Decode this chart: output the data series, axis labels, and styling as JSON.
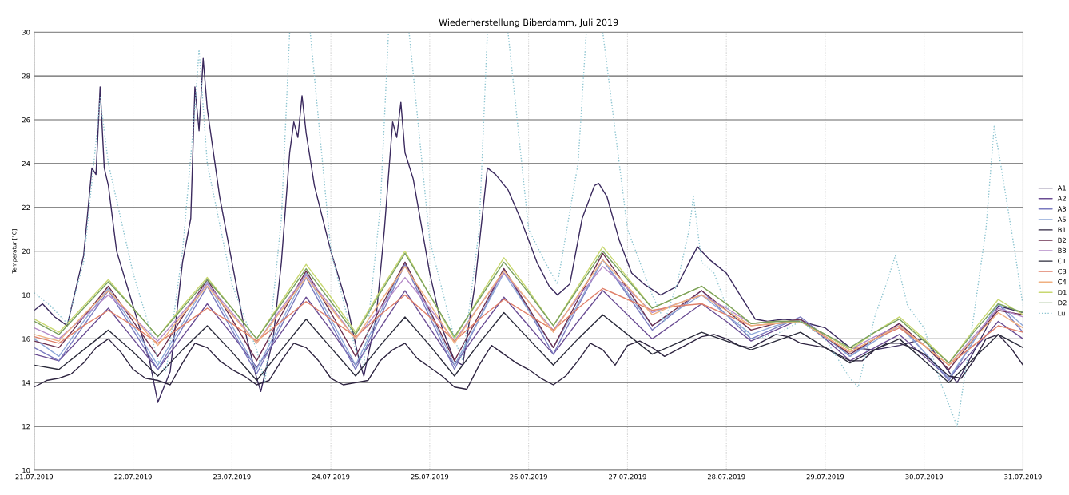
{
  "chart_data": {
    "type": "line",
    "title": "Wiederherstellung Biberdamm, Juli 2019",
    "ylabel": "Temperatur [°C]",
    "x": [
      "2019-07-21T00:00",
      "2019-07-21T06:00",
      "2019-07-21T12:00",
      "2019-07-21T18:00",
      "2019-07-22T00:00",
      "2019-07-22T06:00",
      "2019-07-22T12:00",
      "2019-07-22T18:00",
      "2019-07-23T00:00",
      "2019-07-23T06:00",
      "2019-07-23T12:00",
      "2019-07-23T18:00",
      "2019-07-24T00:00",
      "2019-07-24T06:00",
      "2019-07-24T12:00",
      "2019-07-24T18:00",
      "2019-07-25T00:00",
      "2019-07-25T06:00",
      "2019-07-25T12:00",
      "2019-07-25T18:00",
      "2019-07-26T00:00",
      "2019-07-26T06:00",
      "2019-07-26T12:00",
      "2019-07-26T18:00",
      "2019-07-27T00:00",
      "2019-07-27T06:00",
      "2019-07-27T12:00",
      "2019-07-27T18:00",
      "2019-07-28T00:00",
      "2019-07-28T06:00",
      "2019-07-28T12:00",
      "2019-07-28T18:00",
      "2019-07-29T00:00",
      "2019-07-29T06:00",
      "2019-07-29T12:00",
      "2019-07-29T18:00",
      "2019-07-30T00:00",
      "2019-07-30T06:00",
      "2019-07-30T12:00",
      "2019-07-30T18:00",
      "2019-07-31T00:00"
    ],
    "xlim": [
      "2019-07-21",
      "2019-07-31"
    ],
    "xticks": [
      {
        "value": "2019-07-21",
        "label": "21.07.2019"
      },
      {
        "value": "2019-07-22",
        "label": "22.07.2019"
      },
      {
        "value": "2019-07-23",
        "label": "23.07.2019"
      },
      {
        "value": "2019-07-24",
        "label": "24.07.2019"
      },
      {
        "value": "2019-07-25",
        "label": "25.07.2019"
      },
      {
        "value": "2019-07-26",
        "label": "26.07.2019"
      },
      {
        "value": "2019-07-27",
        "label": "27.07.2019"
      },
      {
        "value": "2019-07-28",
        "label": "28.07.2019"
      },
      {
        "value": "2019-07-29",
        "label": "29.07.2019"
      },
      {
        "value": "2019-07-30",
        "label": "30.07.2019"
      },
      {
        "value": "2019-07-31",
        "label": "31.07.2019"
      }
    ],
    "ylim": [
      10,
      30
    ],
    "yticks": [
      10,
      12,
      14,
      16,
      18,
      20,
      22,
      24,
      26,
      28,
      30
    ],
    "grid": true,
    "legend": "right",
    "marker": "none",
    "series": [
      {
        "name": "A1",
        "color": "#3b2a5e",
        "x": [
          "2019-07-21T00:00",
          "2019-07-21T02:00",
          "2019-07-21T05:00",
          "2019-07-21T08:00",
          "2019-07-21T12:00",
          "2019-07-21T14:00",
          "2019-07-21T15:00",
          "2019-07-21T16:00",
          "2019-07-21T17:00",
          "2019-07-21T18:00",
          "2019-07-21T20:00",
          "2019-07-22T00:00",
          "2019-07-22T04:00",
          "2019-07-22T06:00",
          "2019-07-22T09:00",
          "2019-07-22T12:00",
          "2019-07-22T14:00",
          "2019-07-22T15:00",
          "2019-07-22T16:00",
          "2019-07-22T17:00",
          "2019-07-22T18:00",
          "2019-07-22T21:00",
          "2019-07-23T00:00",
          "2019-07-23T03:00",
          "2019-07-23T06:00",
          "2019-07-23T07:00",
          "2019-07-23T10:00",
          "2019-07-23T12:00",
          "2019-07-23T14:00",
          "2019-07-23T15:00",
          "2019-07-23T16:00",
          "2019-07-23T17:00",
          "2019-07-23T18:00",
          "2019-07-23T20:00",
          "2019-07-24T00:00",
          "2019-07-24T04:00",
          "2019-07-24T07:00",
          "2019-07-24T08:00",
          "2019-07-24T11:00",
          "2019-07-24T13:00",
          "2019-07-24T15:00",
          "2019-07-24T16:00",
          "2019-07-24T17:00",
          "2019-07-24T18:00",
          "2019-07-24T20:00",
          "2019-07-25T00:00",
          "2019-07-25T03:00",
          "2019-07-25T06:00",
          "2019-07-25T08:00",
          "2019-07-25T11:00",
          "2019-07-25T14:00",
          "2019-07-25T16:00",
          "2019-07-25T19:00",
          "2019-07-25T22:00",
          "2019-07-26T02:00",
          "2019-07-26T05:00",
          "2019-07-26T07:00",
          "2019-07-26T10:00",
          "2019-07-26T13:00",
          "2019-07-26T16:00",
          "2019-07-26T17:00",
          "2019-07-26T19:00",
          "2019-07-26T22:00",
          "2019-07-27T01:00",
          "2019-07-27T04:00",
          "2019-07-27T08:00",
          "2019-07-27T12:00",
          "2019-07-27T15:00",
          "2019-07-27T17:00",
          "2019-07-27T20:00",
          "2019-07-28T00:00",
          "2019-07-28T04:00",
          "2019-07-28T07:00",
          "2019-07-28T10:00",
          "2019-07-28T14:00",
          "2019-07-28T18:00",
          "2019-07-29T00:00",
          "2019-07-29T06:00",
          "2019-07-29T12:00",
          "2019-07-29T18:00",
          "2019-07-30T00:00",
          "2019-07-30T08:00",
          "2019-07-30T18:00",
          "2019-07-31T00:00"
        ],
        "values": [
          17.3,
          17.6,
          17.0,
          16.6,
          19.8,
          23.8,
          23.5,
          27.5,
          23.8,
          23.0,
          20.0,
          17.5,
          15.0,
          13.1,
          14.5,
          19.5,
          21.5,
          27.5,
          25.5,
          28.8,
          26.5,
          22.5,
          19.5,
          16.5,
          14.2,
          13.6,
          16.0,
          19.5,
          24.5,
          25.9,
          25.2,
          27.1,
          25.4,
          23.0,
          20.0,
          17.5,
          14.9,
          14.3,
          17.0,
          21.0,
          25.9,
          25.2,
          26.8,
          24.5,
          23.3,
          19.0,
          16.5,
          15.0,
          14.8,
          18.5,
          23.8,
          23.5,
          22.8,
          21.5,
          19.5,
          18.4,
          18.0,
          18.5,
          21.5,
          23.0,
          23.1,
          22.5,
          20.5,
          19.0,
          18.5,
          18.0,
          18.4,
          19.5,
          20.2,
          19.6,
          19.0,
          17.8,
          16.9,
          16.8,
          16.9,
          16.8,
          16.5,
          15.6,
          15.5,
          15.7,
          16.0,
          14.0,
          17.5,
          17.2
        ]
      },
      {
        "name": "A2",
        "color": "#6a4c93",
        "values": [
          15.3,
          15.0,
          16.2,
          17.4,
          16.0,
          14.6,
          16.1,
          17.6,
          16.2,
          14.7,
          16.3,
          17.9,
          16.4,
          14.8,
          16.5,
          18.2,
          16.5,
          14.8,
          16.4,
          17.9,
          16.6,
          15.3,
          16.8,
          18.2,
          17.1,
          16.0,
          16.8,
          17.6,
          16.8,
          15.9,
          16.4,
          16.9,
          16.0,
          15.0,
          15.6,
          16.2,
          15.2,
          14.2,
          15.5,
          16.8,
          16.0
        ]
      },
      {
        "name": "A3",
        "color": "#7b7bc0",
        "values": [
          15.6,
          15.0,
          16.6,
          18.2,
          16.4,
          14.6,
          16.5,
          18.4,
          16.4,
          14.4,
          16.6,
          18.8,
          16.7,
          14.6,
          17.0,
          19.4,
          17.0,
          14.6,
          16.9,
          19.2,
          17.3,
          15.3,
          17.5,
          19.6,
          18.0,
          16.4,
          17.3,
          18.2,
          17.1,
          16.0,
          16.5,
          17.0,
          16.1,
          15.2,
          16.0,
          16.7,
          15.4,
          14.1,
          15.9,
          17.6,
          16.3
        ]
      },
      {
        "name": "A5",
        "color": "#8fa8d8",
        "values": [
          16.0,
          15.2,
          16.8,
          18.3,
          16.6,
          14.8,
          16.7,
          18.6,
          16.6,
          14.6,
          16.8,
          19.0,
          16.9,
          14.8,
          17.2,
          19.5,
          17.2,
          14.8,
          16.9,
          19.0,
          17.3,
          15.6,
          17.6,
          19.6,
          18.1,
          16.6,
          17.3,
          18.0,
          17.1,
          16.2,
          16.6,
          16.9,
          16.1,
          15.2,
          15.9,
          16.6,
          15.4,
          14.2,
          15.9,
          17.6,
          16.6
        ]
      },
      {
        "name": "B1",
        "color": "#2e2440",
        "x": [
          "2019-07-21T00:00",
          "2019-07-21T03:00",
          "2019-07-21T06:00",
          "2019-07-21T09:00",
          "2019-07-21T12:00",
          "2019-07-21T15:00",
          "2019-07-21T18:00",
          "2019-07-21T21:00",
          "2019-07-22T00:00",
          "2019-07-22T03:00",
          "2019-07-22T06:00",
          "2019-07-22T09:00",
          "2019-07-22T12:00",
          "2019-07-22T15:00",
          "2019-07-22T18:00",
          "2019-07-22T21:00",
          "2019-07-23T00:00",
          "2019-07-23T03:00",
          "2019-07-23T06:00",
          "2019-07-23T09:00",
          "2019-07-23T12:00",
          "2019-07-23T15:00",
          "2019-07-23T18:00",
          "2019-07-23T21:00",
          "2019-07-24T00:00",
          "2019-07-24T03:00",
          "2019-07-24T06:00",
          "2019-07-24T09:00",
          "2019-07-24T12:00",
          "2019-07-24T15:00",
          "2019-07-24T18:00",
          "2019-07-24T21:00",
          "2019-07-25T00:00",
          "2019-07-25T03:00",
          "2019-07-25T06:00",
          "2019-07-25T09:00",
          "2019-07-25T12:00",
          "2019-07-25T15:00",
          "2019-07-25T18:00",
          "2019-07-25T21:00",
          "2019-07-26T00:00",
          "2019-07-26T03:00",
          "2019-07-26T06:00",
          "2019-07-26T09:00",
          "2019-07-26T12:00",
          "2019-07-26T15:00",
          "2019-07-26T18:00",
          "2019-07-26T21:00",
          "2019-07-27T00:00",
          "2019-07-27T03:00",
          "2019-07-27T06:00",
          "2019-07-27T09:00",
          "2019-07-27T12:00",
          "2019-07-27T15:00",
          "2019-07-27T18:00",
          "2019-07-27T21:00",
          "2019-07-28T00:00",
          "2019-07-28T03:00",
          "2019-07-28T06:00",
          "2019-07-28T09:00",
          "2019-07-28T12:00",
          "2019-07-28T15:00",
          "2019-07-28T18:00",
          "2019-07-28T21:00",
          "2019-07-29T00:00",
          "2019-07-29T03:00",
          "2019-07-29T06:00",
          "2019-07-29T09:00",
          "2019-07-29T12:00",
          "2019-07-29T15:00",
          "2019-07-29T18:00",
          "2019-07-29T21:00",
          "2019-07-30T00:00",
          "2019-07-30T03:00",
          "2019-07-30T06:00",
          "2019-07-30T09:00",
          "2019-07-30T12:00",
          "2019-07-30T15:00",
          "2019-07-30T18:00",
          "2019-07-30T21:00",
          "2019-07-31T00:00"
        ],
        "values": [
          13.8,
          14.1,
          14.2,
          14.4,
          14.9,
          15.6,
          16.0,
          15.4,
          14.6,
          14.2,
          14.1,
          13.9,
          14.9,
          15.8,
          15.6,
          15.0,
          14.6,
          14.3,
          13.9,
          14.1,
          15.0,
          15.8,
          15.6,
          15.0,
          14.2,
          13.9,
          14.0,
          14.1,
          15.0,
          15.5,
          15.8,
          15.1,
          14.7,
          14.3,
          13.8,
          13.7,
          14.8,
          15.7,
          15.3,
          14.9,
          14.6,
          14.2,
          13.9,
          14.3,
          15.0,
          15.8,
          15.5,
          14.8,
          15.7,
          15.9,
          15.6,
          15.2,
          15.5,
          15.8,
          16.1,
          16.2,
          16.0,
          15.7,
          15.6,
          15.9,
          16.2,
          16.1,
          15.8,
          15.7,
          15.6,
          15.3,
          15.0,
          15.0,
          15.5,
          15.8,
          15.8,
          15.6,
          15.3,
          14.8,
          14.3,
          14.2,
          15.0,
          16.0,
          16.2,
          15.6,
          14.8
        ]
      },
      {
        "name": "B2",
        "color": "#6b2f4f",
        "values": [
          15.9,
          15.6,
          17.0,
          18.4,
          16.8,
          15.2,
          17.0,
          18.7,
          16.9,
          15.0,
          17.1,
          19.1,
          17.2,
          15.2,
          17.4,
          19.5,
          17.3,
          15.0,
          17.1,
          19.2,
          17.4,
          15.6,
          17.8,
          19.9,
          18.3,
          16.6,
          17.4,
          18.2,
          17.3,
          16.4,
          16.7,
          16.9,
          16.1,
          15.3,
          16.0,
          16.7,
          15.7,
          14.6,
          16.0,
          17.3,
          17.1
        ]
      },
      {
        "name": "B3",
        "color": "#b48ac8",
        "values": [
          16.5,
          16.0,
          17.0,
          18.0,
          17.0,
          15.9,
          17.2,
          18.5,
          17.2,
          15.8,
          17.4,
          18.9,
          17.5,
          16.0,
          17.4,
          18.8,
          17.4,
          15.9,
          17.5,
          19.0,
          17.7,
          16.4,
          17.9,
          19.3,
          18.3,
          17.2,
          17.6,
          18.0,
          17.4,
          16.7,
          16.8,
          16.8,
          16.2,
          15.5,
          16.1,
          16.6,
          15.7,
          14.8,
          16.1,
          17.4,
          17.0
        ]
      },
      {
        "name": "C1",
        "color": "#2b2b3b",
        "values": [
          14.8,
          14.6,
          15.5,
          16.4,
          15.4,
          14.3,
          15.5,
          16.6,
          15.4,
          14.1,
          15.5,
          16.9,
          15.6,
          14.3,
          15.7,
          17.0,
          15.7,
          14.3,
          15.8,
          17.2,
          16.0,
          14.8,
          16.0,
          17.1,
          16.2,
          15.3,
          15.8,
          16.3,
          15.9,
          15.5,
          15.9,
          16.3,
          15.6,
          14.9,
          15.5,
          16.0,
          15.0,
          14.0,
          15.1,
          16.2,
          15.6
        ]
      },
      {
        "name": "C3",
        "color": "#e0806a",
        "values": [
          16.1,
          15.8,
          16.6,
          17.3,
          16.6,
          15.8,
          16.6,
          17.4,
          16.7,
          15.9,
          16.8,
          17.7,
          16.9,
          16.1,
          17.1,
          18.0,
          17.0,
          15.9,
          16.9,
          17.8,
          17.1,
          16.4,
          17.4,
          18.3,
          17.8,
          17.3,
          17.5,
          17.6,
          17.1,
          16.6,
          16.7,
          16.8,
          16.1,
          15.4,
          16.0,
          16.5,
          15.7,
          14.8,
          15.7,
          16.6,
          16.3
        ]
      },
      {
        "name": "C4",
        "color": "#f0b080",
        "values": [
          16.2,
          15.9,
          17.1,
          18.2,
          17.0,
          15.7,
          17.1,
          18.4,
          17.1,
          15.8,
          17.3,
          18.8,
          17.4,
          16.0,
          17.7,
          19.3,
          17.6,
          15.8,
          17.5,
          19.1,
          17.7,
          16.3,
          18.0,
          19.6,
          18.4,
          17.1,
          17.6,
          18.0,
          17.3,
          16.6,
          16.7,
          16.8,
          16.1,
          15.4,
          16.0,
          16.6,
          15.7,
          14.8,
          16.0,
          17.2,
          16.5
        ]
      },
      {
        "name": "D1",
        "color": "#c8d870",
        "values": [
          16.9,
          16.3,
          17.5,
          18.7,
          17.4,
          16.1,
          17.5,
          18.8,
          17.4,
          16.0,
          17.7,
          19.4,
          17.9,
          16.3,
          18.2,
          20.0,
          18.0,
          16.0,
          17.9,
          19.7,
          18.2,
          16.6,
          18.4,
          20.2,
          18.8,
          17.4,
          17.9,
          18.4,
          17.6,
          16.7,
          16.8,
          16.8,
          16.2,
          15.5,
          16.3,
          17.0,
          16.0,
          14.9,
          16.4,
          17.8,
          17.1
        ]
      },
      {
        "name": "D2",
        "color": "#7aa060",
        "values": [
          16.8,
          16.2,
          17.4,
          18.6,
          17.4,
          16.1,
          17.4,
          18.7,
          17.4,
          16.0,
          17.6,
          19.2,
          17.7,
          16.2,
          18.1,
          19.9,
          18.0,
          16.1,
          17.8,
          19.5,
          18.1,
          16.6,
          18.3,
          20.0,
          18.7,
          17.4,
          17.9,
          18.4,
          17.6,
          16.7,
          16.8,
          16.8,
          16.2,
          15.6,
          16.3,
          16.9,
          15.9,
          14.9,
          16.3,
          17.6,
          17.2
        ]
      },
      {
        "name": "Lu",
        "color": "#8cc4d0",
        "line_style": "dotted",
        "x": [
          "2019-07-21T00:00",
          "2019-07-21T04:00",
          "2019-07-21T08:00",
          "2019-07-21T12:00",
          "2019-07-21T15:00",
          "2019-07-21T16:00",
          "2019-07-21T18:00",
          "2019-07-22T00:00",
          "2019-07-22T04:00",
          "2019-07-22T06:00",
          "2019-07-22T08:00",
          "2019-07-22T12:00",
          "2019-07-22T15:00",
          "2019-07-22T16:00",
          "2019-07-22T18:00",
          "2019-07-23T00:00",
          "2019-07-23T06:00",
          "2019-07-23T08:00",
          "2019-07-23T12:00",
          "2019-07-23T14:00",
          "2019-07-23T16:00",
          "2019-07-23T19:00",
          "2019-07-24T00:00",
          "2019-07-24T06:00",
          "2019-07-24T08:00",
          "2019-07-24T12:00",
          "2019-07-24T14:00",
          "2019-07-24T16:00",
          "2019-07-24T19:00",
          "2019-07-25T00:00",
          "2019-07-25T06:00",
          "2019-07-25T08:00",
          "2019-07-25T12:00",
          "2019-07-25T14:00",
          "2019-07-25T16:00",
          "2019-07-25T19:00",
          "2019-07-26T00:00",
          "2019-07-26T04:00",
          "2019-07-26T07:00",
          "2019-07-26T12:00",
          "2019-07-26T14:00",
          "2019-07-26T16:00",
          "2019-07-26T18:00",
          "2019-07-27T00:00",
          "2019-07-27T06:00",
          "2019-07-27T09:00",
          "2019-07-27T12:00",
          "2019-07-27T15:00",
          "2019-07-27T16:00",
          "2019-07-27T18:00",
          "2019-07-27T21:00",
          "2019-07-28T00:00",
          "2019-07-28T06:00",
          "2019-07-28T12:00",
          "2019-07-28T18:00",
          "2019-07-29T00:00",
          "2019-07-29T06:00",
          "2019-07-29T08:00",
          "2019-07-29T12:00",
          "2019-07-29T15:00",
          "2019-07-29T17:00",
          "2019-07-29T20:00",
          "2019-07-30T00:00",
          "2019-07-30T04:00",
          "2019-07-30T08:00",
          "2019-07-30T12:00",
          "2019-07-30T15:00",
          "2019-07-30T17:00",
          "2019-07-30T19:00",
          "2019-07-30T22:00",
          "2019-07-31T00:00"
        ],
        "values": [
          18.1,
          17.5,
          16.7,
          19.5,
          25.0,
          27.0,
          24.0,
          19.0,
          16.5,
          15.0,
          14.5,
          20.0,
          26.5,
          29.2,
          24.0,
          18.5,
          15.5,
          14.0,
          21.5,
          30.0,
          null,
          30.0,
          20.0,
          15.5,
          14.8,
          22.0,
          30.0,
          null,
          30.0,
          20.5,
          16.0,
          15.0,
          21.0,
          30.0,
          null,
          30.0,
          21.0,
          19.5,
          18.5,
          24.0,
          30.0,
          null,
          30.0,
          21.0,
          18.0,
          16.8,
          18.5,
          21.0,
          22.5,
          19.5,
          19.0,
          17.5,
          16.0,
          16.2,
          16.8,
          16.0,
          14.2,
          13.8,
          17.0,
          18.6,
          19.8,
          17.5,
          16.5,
          14.0,
          12.0,
          17.0,
          21.0,
          25.7,
          23.5,
          20.0,
          17.5
        ]
      }
    ]
  }
}
